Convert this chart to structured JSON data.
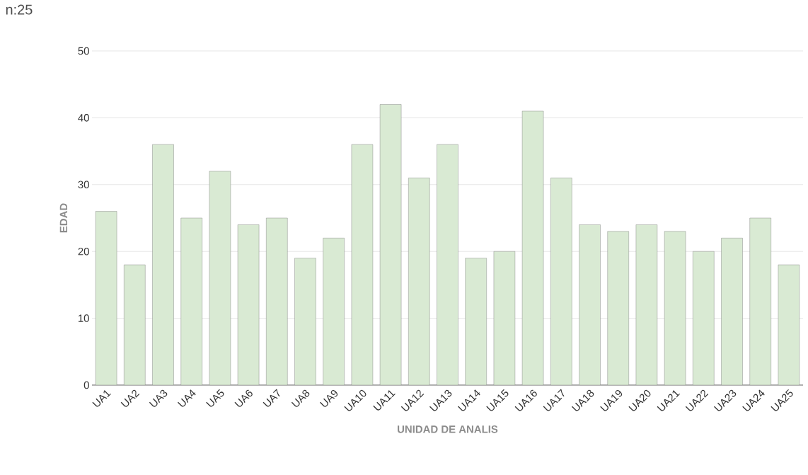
{
  "chart_data": {
    "type": "bar",
    "title": "n:25",
    "xlabel": "UNIDAD DE ANALIS",
    "ylabel": "EDAD",
    "categories": [
      "UA1",
      "UA2",
      "UA3",
      "UA4",
      "UA5",
      "UA6",
      "UA7",
      "UA8",
      "UA9",
      "UA10",
      "UA11",
      "UA12",
      "UA13",
      "UA14",
      "UA15",
      "UA16",
      "UA17",
      "UA18",
      "UA19",
      "UA20",
      "UA21",
      "UA22",
      "UA23",
      "UA24",
      "UA25"
    ],
    "values": [
      26,
      18,
      36,
      25,
      32,
      24,
      25,
      19,
      22,
      36,
      42,
      31,
      36,
      19,
      20,
      41,
      31,
      24,
      23,
      24,
      23,
      20,
      22,
      25,
      18
    ],
    "color": "#d9ead3",
    "ylim": [
      0,
      50
    ],
    "yticks": [
      0,
      10,
      20,
      30,
      40,
      50
    ],
    "grid": "y"
  }
}
